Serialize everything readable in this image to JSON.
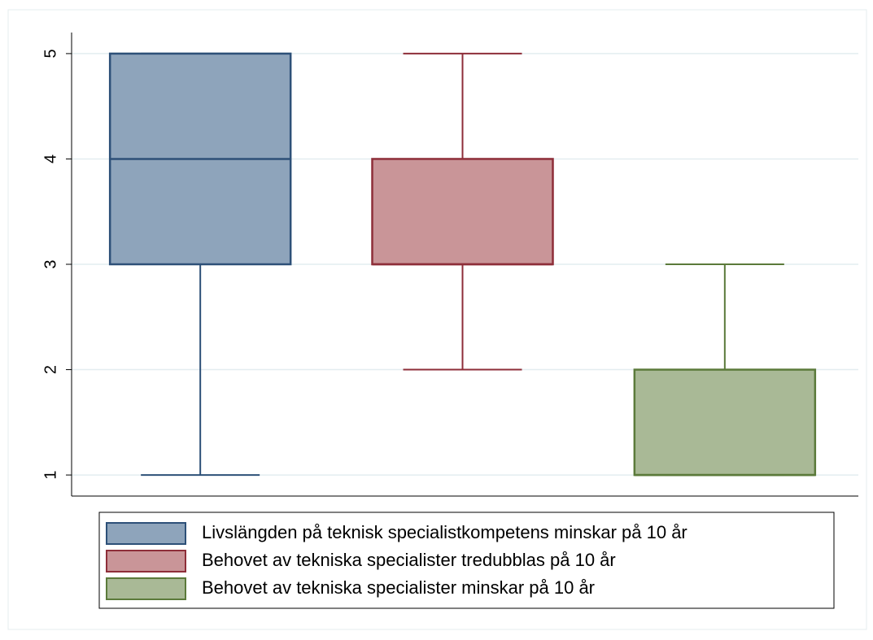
{
  "chart_data": {
    "type": "box",
    "series": [
      {
        "name": "Livslängden på teknisk specialistkompetens minskar på 10 år",
        "color": "#8ea4bb",
        "edge": "#2d5078",
        "min": 1,
        "q1": 3,
        "median": 4,
        "q3": 5,
        "max": 5
      },
      {
        "name": "Behovet av tekniska specialister tredubblas på 10 år",
        "color": "#c99598",
        "edge": "#8e2e39",
        "min": 2,
        "q1": 3,
        "median": 3,
        "q3": 4,
        "max": 5
      },
      {
        "name": "Behovet av tekniska specialister minskar på 10 år",
        "color": "#a9b996",
        "edge": "#5b7a3a",
        "min": 1,
        "q1": 1,
        "median": 1,
        "q3": 2,
        "max": 3
      }
    ],
    "ylim": [
      0.8,
      5.2
    ],
    "yticks": [
      1,
      2,
      3,
      4,
      5
    ],
    "grid": true,
    "legend": "bottom"
  }
}
